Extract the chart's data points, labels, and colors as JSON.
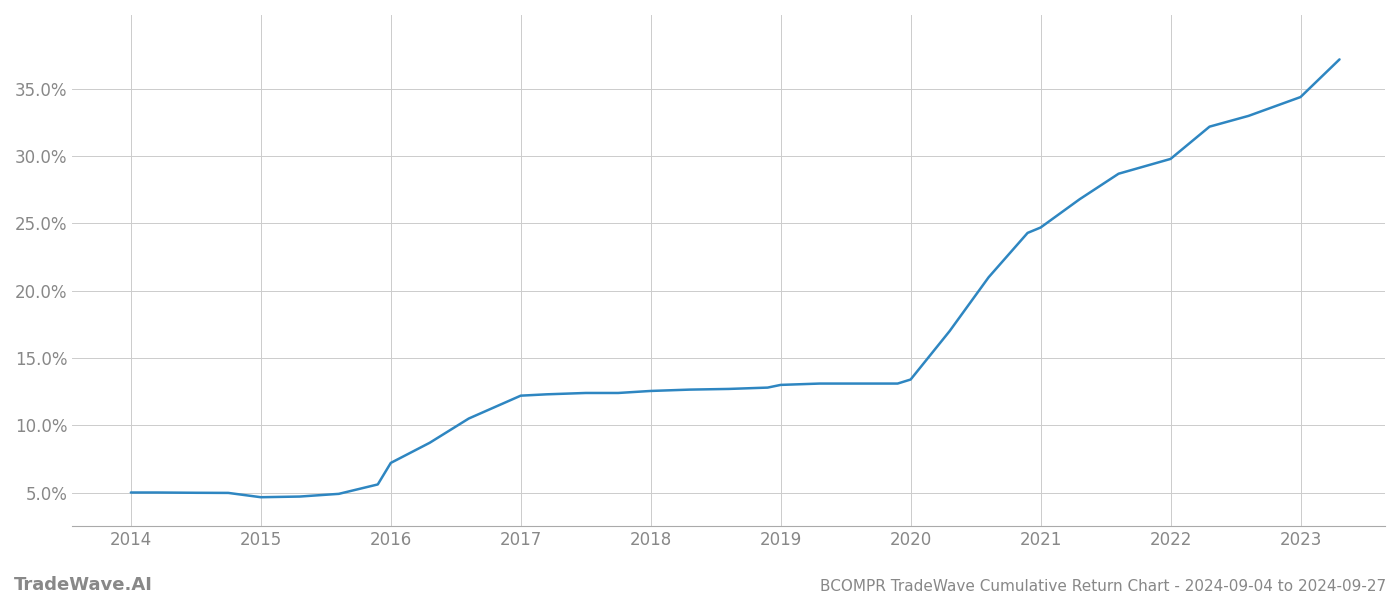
{
  "title": "BCOMPR TradeWave Cumulative Return Chart - 2024-09-04 to 2024-09-27",
  "watermark": "TradeWave.AI",
  "line_color": "#2E86C1",
  "background_color": "#ffffff",
  "grid_color": "#cccccc",
  "x_years": [
    2014,
    2015,
    2016,
    2017,
    2018,
    2019,
    2020,
    2021,
    2022,
    2023
  ],
  "x_values": [
    2014.0,
    2014.2,
    2014.5,
    2014.75,
    2015.0,
    2015.3,
    2015.6,
    2015.9,
    2016.0,
    2016.3,
    2016.6,
    2017.0,
    2017.2,
    2017.5,
    2017.75,
    2018.0,
    2018.3,
    2018.6,
    2018.9,
    2019.0,
    2019.3,
    2019.6,
    2019.9,
    2020.0,
    2020.3,
    2020.6,
    2020.9,
    2021.0,
    2021.3,
    2021.6,
    2022.0,
    2022.3,
    2022.6,
    2023.0,
    2023.3
  ],
  "y_values": [
    0.05,
    0.05,
    0.0498,
    0.0497,
    0.0465,
    0.047,
    0.049,
    0.056,
    0.072,
    0.087,
    0.105,
    0.122,
    0.123,
    0.124,
    0.124,
    0.1255,
    0.1265,
    0.127,
    0.128,
    0.13,
    0.131,
    0.131,
    0.131,
    0.134,
    0.17,
    0.21,
    0.243,
    0.247,
    0.268,
    0.287,
    0.298,
    0.322,
    0.33,
    0.344,
    0.372
  ],
  "yticks": [
    0.05,
    0.1,
    0.15,
    0.2,
    0.25,
    0.3,
    0.35
  ],
  "ytick_labels": [
    "5.0%",
    "10.0%",
    "15.0%",
    "20.0%",
    "25.0%",
    "30.0%",
    "35.0%"
  ],
  "ylim": [
    0.025,
    0.405
  ],
  "xlim": [
    2013.55,
    2023.65
  ],
  "title_fontsize": 11,
  "tick_fontsize": 12,
  "watermark_fontsize": 13,
  "line_width": 1.8
}
